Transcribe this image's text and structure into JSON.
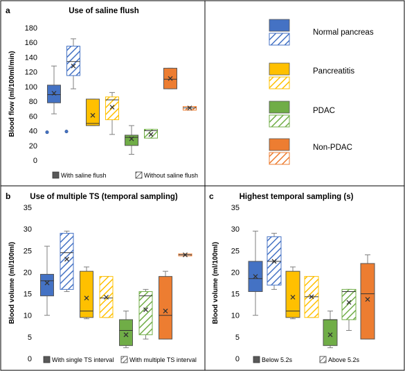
{
  "colors": {
    "normal_pancreas": "#4472c4",
    "pancreatitis": "#ffc000",
    "pdac": "#70ad47",
    "non_pdac": "#ed7d31"
  },
  "legend": {
    "items": [
      {
        "label": "Normal pancreas",
        "color": "#4472c4"
      },
      {
        "label": "Pancreatitis",
        "color": "#ffc000"
      },
      {
        "label": "PDAC",
        "color": "#70ad47"
      },
      {
        "label": "Non-PDAC",
        "color": "#ed7d31"
      }
    ]
  },
  "chart_data": [
    {
      "type": "box",
      "panel_letter": "a",
      "title": "Use of saline flush",
      "ylabel": "Blood flow (ml/100ml/min)",
      "ylim": [
        0,
        180
      ],
      "yticks": [
        0,
        20,
        40,
        60,
        80,
        100,
        120,
        140,
        160,
        180
      ],
      "series_legend": [
        "With saline flush",
        "Without saline flush"
      ],
      "boxes": [
        {
          "group": "Normal pancreas",
          "condition": "With saline flush",
          "min": 63,
          "q1": 78,
          "median": 89,
          "q3": 102,
          "max": 128,
          "mean": 91,
          "outliers": [
            38
          ]
        },
        {
          "group": "Normal pancreas",
          "condition": "Without saline flush",
          "min": 97,
          "q1": 115,
          "median": 134,
          "q3": 155,
          "max": 165,
          "mean": 128,
          "outliers": [
            39
          ]
        },
        {
          "group": "Pancreatitis",
          "condition": "With saline flush",
          "min": 47,
          "q1": 47,
          "median": 50,
          "q3": 83,
          "max": 83,
          "mean": 61,
          "outliers": []
        },
        {
          "group": "Pancreatitis",
          "condition": "Without saline flush",
          "min": 35,
          "q1": 55,
          "median": 82,
          "q3": 86,
          "max": 92,
          "mean": 72,
          "outliers": []
        },
        {
          "group": "PDAC",
          "condition": "With saline flush",
          "min": 8,
          "q1": 20,
          "median": 31,
          "q3": 34,
          "max": 47,
          "mean": 29,
          "outliers": []
        },
        {
          "group": "PDAC",
          "condition": "Without saline flush",
          "min": 30,
          "q1": 30,
          "median": 40,
          "q3": 42,
          "max": 42,
          "mean": 35,
          "outliers": []
        },
        {
          "group": "Non-PDAC",
          "condition": "With saline flush",
          "min": 97,
          "q1": 97,
          "median": 110,
          "q3": 125,
          "max": 125,
          "mean": 111,
          "outliers": []
        },
        {
          "group": "Non-PDAC",
          "condition": "Without saline flush",
          "min": 68,
          "q1": 68,
          "median": 71,
          "q3": 73,
          "max": 73,
          "mean": 71,
          "outliers": []
        }
      ]
    },
    {
      "type": "box",
      "panel_letter": "b",
      "title": "Use of multiple TS (temporal sampling)",
      "ylabel": "Blood volume (ml/100ml)",
      "ylim": [
        0,
        35
      ],
      "yticks": [
        0,
        5,
        10,
        15,
        20,
        25,
        30,
        35
      ],
      "series_legend": [
        "With single TS interval",
        "With multiple TS interval"
      ],
      "boxes": [
        {
          "group": "Normal pancreas",
          "condition": "With single TS interval",
          "min": 10,
          "q1": 14.5,
          "median": 18,
          "q3": 19.5,
          "max": 26,
          "mean": 17.5,
          "outliers": []
        },
        {
          "group": "Normal pancreas",
          "condition": "With multiple TS interval",
          "min": 15.5,
          "q1": 16,
          "median": 24.5,
          "q3": 29,
          "max": 29.5,
          "mean": 23,
          "outliers": []
        },
        {
          "group": "Pancreatitis",
          "condition": "With single TS interval",
          "min": 9.2,
          "q1": 9.5,
          "median": 11,
          "q3": 20.2,
          "max": 21.2,
          "mean": 14,
          "outliers": []
        },
        {
          "group": "Pancreatitis",
          "condition": "With multiple TS interval",
          "min": 9.5,
          "q1": 9.5,
          "median": 14,
          "q3": 19,
          "max": 19,
          "mean": 14.2,
          "outliers": []
        },
        {
          "group": "PDAC",
          "condition": "With single TS interval",
          "min": 2.5,
          "q1": 3,
          "median": 6.5,
          "q3": 9,
          "max": 11,
          "mean": 5.5,
          "outliers": []
        },
        {
          "group": "PDAC",
          "condition": "With multiple TS interval",
          "min": 4.5,
          "q1": 5.5,
          "median": 14.5,
          "q3": 15.5,
          "max": 16,
          "mean": 11.3,
          "outliers": []
        },
        {
          "group": "Non-PDAC",
          "condition": "With single TS interval",
          "min": 4.5,
          "q1": 4.5,
          "median": 10,
          "q3": 19,
          "max": 20.2,
          "mean": 11,
          "outliers": []
        },
        {
          "group": "Non-PDAC",
          "condition": "With multiple TS interval",
          "min": 24,
          "q1": 24,
          "median": 24,
          "q3": 24,
          "max": 24,
          "mean": 24,
          "outliers": []
        }
      ]
    },
    {
      "type": "box",
      "panel_letter": "c",
      "title": "Highest temporal sampling (s)",
      "ylabel": "Blood volume (ml/100ml)",
      "ylim": [
        0,
        35
      ],
      "yticks": [
        0,
        5,
        10,
        15,
        20,
        25,
        30,
        35
      ],
      "series_legend": [
        "Below 5.2s",
        "Above 5.2s"
      ],
      "boxes": [
        {
          "group": "Normal pancreas",
          "condition": "Below 5.2s",
          "min": 10,
          "q1": 15.5,
          "median": 18.5,
          "q3": 22.5,
          "max": 29.5,
          "mean": 19,
          "outliers": []
        },
        {
          "group": "Normal pancreas",
          "condition": "Above 5.2s",
          "min": 16,
          "q1": 17,
          "median": 22.5,
          "q3": 28.2,
          "max": 29,
          "mean": 22.5,
          "outliers": []
        },
        {
          "group": "Pancreatitis",
          "condition": "Below 5.2s",
          "min": 9.2,
          "q1": 9.5,
          "median": 11,
          "q3": 20.2,
          "max": 21.2,
          "mean": 14.2,
          "outliers": []
        },
        {
          "group": "Pancreatitis",
          "condition": "Above 5.2s",
          "min": 9.5,
          "q1": 9.5,
          "median": 14.3,
          "q3": 19,
          "max": 19,
          "mean": 14.3,
          "outliers": []
        },
        {
          "group": "PDAC",
          "condition": "Below 5.2s",
          "min": 2.5,
          "q1": 3,
          "median": 9,
          "q3": 9,
          "max": 11,
          "mean": 5.5,
          "outliers": []
        },
        {
          "group": "PDAC",
          "condition": "Above 5.2s",
          "min": 6.5,
          "q1": 9,
          "median": 15.5,
          "q3": 16,
          "max": 16,
          "mean": 13,
          "outliers": []
        },
        {
          "group": "Non-PDAC",
          "condition": "Below 5.2s",
          "min": 4.5,
          "q1": 4.5,
          "median": 15,
          "q3": 22,
          "max": 24,
          "mean": 13.7,
          "outliers": []
        }
      ]
    }
  ]
}
